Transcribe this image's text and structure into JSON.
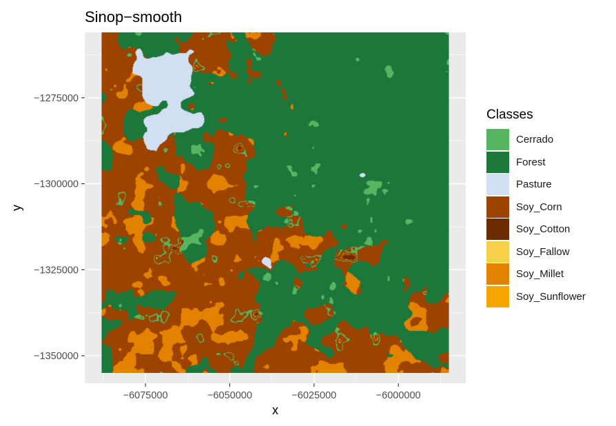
{
  "title": "Sinop−smooth",
  "chart_data": {
    "type": "raster-map",
    "title": "Sinop−smooth",
    "xlabel": "x",
    "ylabel": "y",
    "x_ticks": [
      -6075000,
      -6050000,
      -6025000,
      -6000000
    ],
    "x_tick_labels": [
      "−6075000",
      "−6050000",
      "−6025000",
      "−6000000"
    ],
    "y_ticks": [
      -1275000,
      -1300000,
      -1325000,
      -1350000
    ],
    "y_tick_labels": [
      "−1275000",
      "−1300000",
      "−1325000",
      "−1350000"
    ],
    "xlim": [
      -6093000,
      -5980000
    ],
    "ylim": [
      -1358000,
      -1256000
    ],
    "raster_extent": {
      "xmin": -6088000,
      "xmax": -5985000,
      "ymin": -1355000,
      "ymax": -1256000
    },
    "grid": true,
    "panel_background": "#EBEBEB",
    "legend_title": "Classes",
    "legend_position": "right",
    "classes": [
      {
        "name": "Cerrado",
        "color": "#55B560"
      },
      {
        "name": "Forest",
        "color": "#1C773A"
      },
      {
        "name": "Pasture",
        "color": "#D1DFF3"
      },
      {
        "name": "Soy_Corn",
        "color": "#9D4300"
      },
      {
        "name": "Soy_Cotton",
        "color": "#6B2D00"
      },
      {
        "name": "Soy_Fallow",
        "color": "#F8CF4A"
      },
      {
        "name": "Soy_Millet",
        "color": "#E38200"
      },
      {
        "name": "Soy_Sunflower",
        "color": "#F5A500"
      }
    ]
  }
}
